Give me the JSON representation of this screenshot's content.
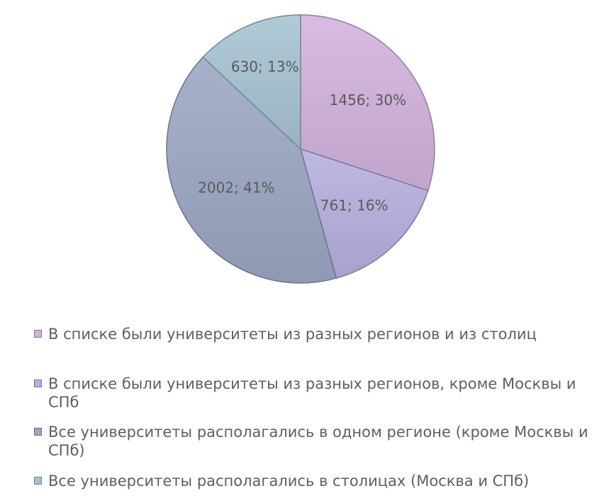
{
  "chart_data": {
    "type": "pie",
    "start_angle_deg": 0,
    "direction": "clockwise",
    "slices": [
      {
        "value": 1456,
        "percent_label": "30%",
        "label": "1456; 30%",
        "color": "#d2b2de",
        "legend": "В списке были университеты из разных регионов и из столиц"
      },
      {
        "value": 761,
        "percent_label": "16%",
        "label": "761; 16%",
        "color": "#b4b0df",
        "legend": "В списке были университеты из разных регионов, кроме Москвы и СПб"
      },
      {
        "value": 2002,
        "percent_label": "41%",
        "label": "2002; 41%",
        "color": "#9ca6c4",
        "legend": "Все университеты располагались в одном регионе (кроме Москвы и СПб)"
      },
      {
        "value": 630,
        "percent_label": "13%",
        "label": "630; 13%",
        "color": "#a6c3d2",
        "legend": "Все университеты располагались в столицах (Москва и СПб)"
      }
    ],
    "legend_position": "bottom"
  }
}
